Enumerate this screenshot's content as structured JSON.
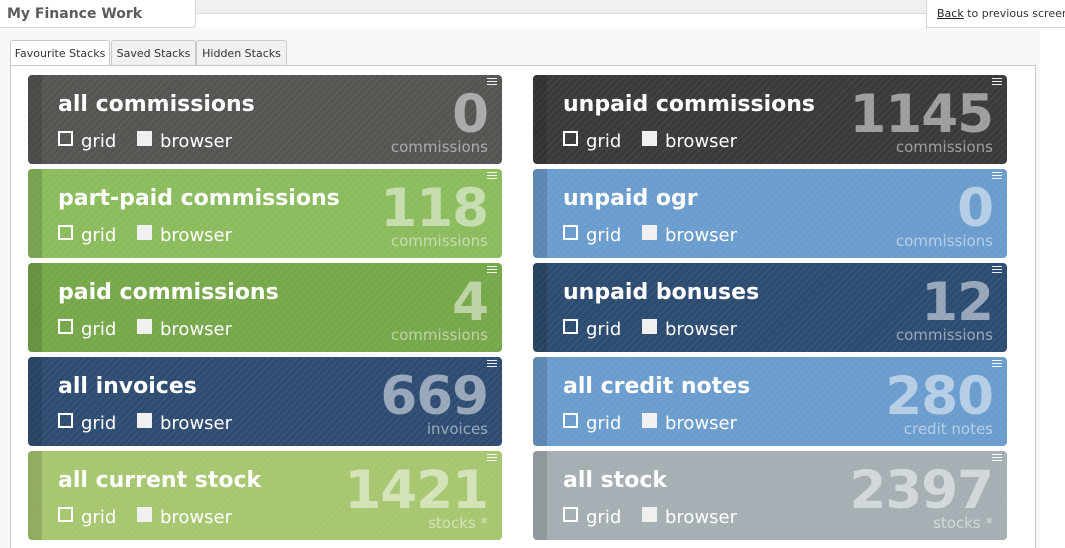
{
  "header": {
    "title": "My Finance Work Stacks"
  },
  "back": {
    "link": "Back",
    "text": " to previous screen"
  },
  "tabs": [
    {
      "label": "Favourite Stacks",
      "active": true
    },
    {
      "label": "Saved Stacks",
      "active": false
    },
    {
      "label": "Hidden Stacks",
      "active": false
    }
  ],
  "options": {
    "grid": "grid",
    "browser": "browser"
  },
  "cards": [
    {
      "name": "all commissions",
      "count": "0",
      "unit": "commissions",
      "color": "#565451"
    },
    {
      "name": "unpaid commissions",
      "count": "1145",
      "unit": "commissions",
      "color": "#3b3a38"
    },
    {
      "name": "part-paid commissions",
      "count": "118",
      "unit": "commissions",
      "color": "#8bbb5c"
    },
    {
      "name": "unpaid ogr",
      "count": "0",
      "unit": "commissions",
      "color": "#6a9ccd"
    },
    {
      "name": "paid commissions",
      "count": "4",
      "unit": "commissions",
      "color": "#76a749"
    },
    {
      "name": "unpaid bonuses",
      "count": "12",
      "unit": "commissions",
      "color": "#2c4b70"
    },
    {
      "name": "all invoices",
      "count": "669",
      "unit": "invoices",
      "color": "#2e4c72"
    },
    {
      "name": "all credit notes",
      "count": "280",
      "unit": "credit notes",
      "color": "#6a9ccd"
    },
    {
      "name": "all current stock",
      "count": "1421",
      "unit": "stocks *",
      "color": "#a6c66f"
    },
    {
      "name": "all stock",
      "count": "2397",
      "unit": "stocks *",
      "color": "#a5aeb2"
    }
  ]
}
